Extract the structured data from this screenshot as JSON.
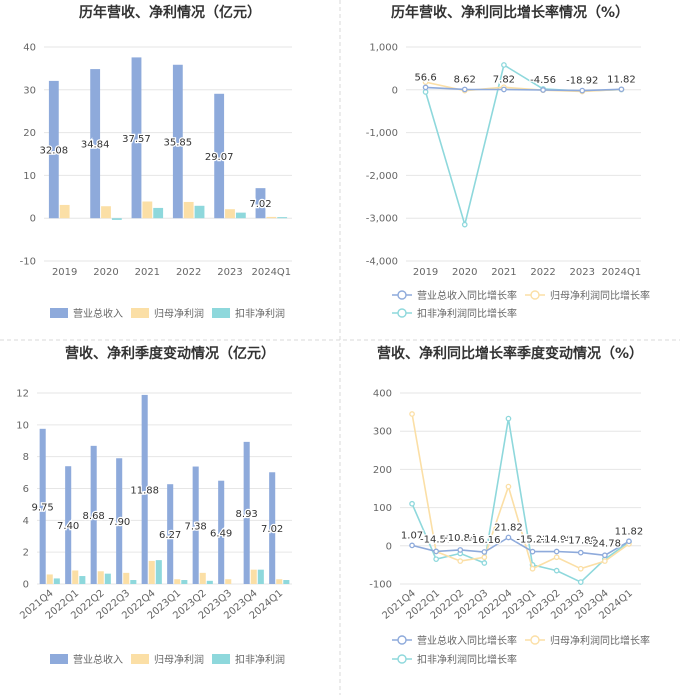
{
  "colors": {
    "revenue": "#8eaadb",
    "parent_profit": "#fbdfa6",
    "deducted_profit": "#8ed8dc",
    "grid": "#e6e6e6",
    "axis_text": "#666666",
    "title": "#333333",
    "divider": "#d9d9d9"
  },
  "chart_data": [
    {
      "id": "annual_amounts",
      "type": "bar",
      "title": "历年营收、净利情况（亿元）",
      "categories": [
        "2019",
        "2020",
        "2021",
        "2022",
        "2023",
        "2024Q1"
      ],
      "ylim": [
        -10,
        40
      ],
      "yticks": [
        "-10",
        "0",
        "10",
        "20",
        "30",
        "40"
      ],
      "ytick_values": [
        -10,
        0,
        10,
        20,
        30,
        40
      ],
      "series": [
        {
          "name": "营业总收入",
          "color_key": "revenue",
          "values": [
            32.08,
            34.84,
            37.57,
            35.85,
            29.07,
            7.02
          ],
          "labels": [
            "32.08",
            "34.84",
            "37.57",
            "35.85",
            "29.07",
            "7.02"
          ]
        },
        {
          "name": "归母净利润",
          "color_key": "parent_profit",
          "values": [
            3.1,
            2.8,
            3.9,
            3.8,
            2.1,
            0.3
          ]
        },
        {
          "name": "扣非净利润",
          "color_key": "deducted_profit",
          "values": [
            0,
            -0.4,
            2.4,
            2.9,
            1.3,
            0.25
          ]
        }
      ],
      "legend_position": "bottom"
    },
    {
      "id": "annual_growth",
      "type": "line",
      "title": "历年营收、净利同比增长率情况（%）",
      "categories": [
        "2019",
        "2020",
        "2021",
        "2022",
        "2023",
        "2024Q1"
      ],
      "ylim": [
        -4000,
        1000
      ],
      "yticks": [
        "-4,000",
        "-3,000",
        "-2,000",
        "-1,000",
        "0",
        "1,000"
      ],
      "ytick_values": [
        -4000,
        -3000,
        -2000,
        -1000,
        0,
        1000
      ],
      "series": [
        {
          "name": "营业总收入同比增长率",
          "color_key": "revenue",
          "values": [
            56.6,
            8.62,
            7.82,
            -4.56,
            -18.92,
            11.82
          ],
          "labels": [
            "56.6",
            "8.62",
            "7.82",
            "-4.56",
            "-18.92",
            "11.82"
          ]
        },
        {
          "name": "归母净利润同比增长率",
          "color_key": "parent_profit",
          "values": [
            180,
            -20,
            60,
            -10,
            -40,
            10
          ]
        },
        {
          "name": "扣非净利润同比增长率",
          "color_key": "deducted_profit",
          "values": [
            -50,
            -3150,
            580,
            20,
            -30,
            5
          ]
        }
      ],
      "legend_position": "bottom"
    },
    {
      "id": "quarterly_amounts",
      "type": "bar",
      "title": "营收、净利季度变动情况（亿元）",
      "categories": [
        "2021Q4",
        "2022Q1",
        "2022Q2",
        "2022Q3",
        "2022Q4",
        "2023Q1",
        "2023Q2",
        "2023Q3",
        "2023Q4",
        "2024Q1"
      ],
      "ylim": [
        0,
        12
      ],
      "yticks": [
        "0",
        "2",
        "4",
        "6",
        "8",
        "10",
        "12"
      ],
      "ytick_values": [
        0,
        2,
        4,
        6,
        8,
        10,
        12
      ],
      "series": [
        {
          "name": "营业总收入",
          "color_key": "revenue",
          "values": [
            9.75,
            7.4,
            8.68,
            7.9,
            11.88,
            6.27,
            7.38,
            6.49,
            8.93,
            7.02
          ],
          "labels": [
            "9.75",
            "7.40",
            "8.68",
            "7.90",
            "11.88",
            "6.27",
            "7.38",
            "6.49",
            "8.93",
            "7.02"
          ]
        },
        {
          "name": "归母净利润",
          "color_key": "parent_profit",
          "values": [
            0.6,
            0.85,
            0.8,
            0.7,
            1.45,
            0.3,
            0.7,
            0.3,
            0.9,
            0.3
          ]
        },
        {
          "name": "扣非净利润",
          "color_key": "deducted_profit",
          "values": [
            0.35,
            0.5,
            0.65,
            0.25,
            1.5,
            0.25,
            0.2,
            0,
            0.9,
            0.25
          ]
        }
      ],
      "legend_position": "bottom"
    },
    {
      "id": "quarterly_growth",
      "type": "line",
      "title": "营收、净利同比增长率季度变动情况（%）",
      "categories": [
        "2021Q4",
        "2022Q1",
        "2022Q2",
        "2022Q3",
        "2022Q4",
        "2023Q1",
        "2023Q2",
        "2023Q3",
        "2023Q4",
        "2024Q1"
      ],
      "ylim": [
        -100,
        400
      ],
      "yticks": [
        "-100",
        "0",
        "100",
        "200",
        "300",
        "400"
      ],
      "ytick_values": [
        -100,
        0,
        100,
        200,
        300,
        400
      ],
      "series": [
        {
          "name": "营业总收入同比增长率",
          "color_key": "revenue",
          "values": [
            1.07,
            -14.57,
            -10.84,
            -16.16,
            21.82,
            -15.22,
            -14.98,
            -17.88,
            -24.78,
            11.82
          ],
          "labels": [
            "1.07",
            "-14.57",
            "-10.84",
            "-16.16",
            "21.82",
            "-15.22",
            "-14.98",
            "-17.88",
            "-24.78",
            "11.82"
          ]
        },
        {
          "name": "归母净利润同比增长率",
          "color_key": "parent_profit",
          "values": [
            345,
            -15,
            -40,
            -30,
            155,
            -60,
            -30,
            -60,
            -40,
            5
          ]
        },
        {
          "name": "扣非净利润同比增长率",
          "color_key": "deducted_profit",
          "values": [
            110,
            -35,
            -20,
            -45,
            333,
            -50,
            -65,
            -95,
            -35,
            10
          ]
        }
      ],
      "legend_position": "bottom"
    }
  ]
}
